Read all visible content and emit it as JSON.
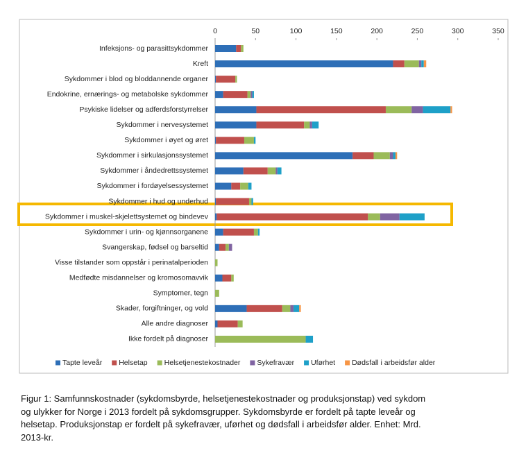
{
  "chart_data": {
    "type": "stacked_bar_horizontal",
    "categories": [
      "Infeksjons- og parasittsykdommer",
      "Kreft",
      "Sykdommer i blod og bloddannende organer",
      "Endokrine, ernærings- og metabolske sykdommer",
      "Psykiske lidelser og adferdsforstyrrelser",
      "Sykdommer i nervesystemet",
      "Sykdommer i øyet og øret",
      "Sykdommer i sirkulasjonssystemet",
      "Sykdommer i åndedrettssystemet",
      "Sykdommer i fordøyelsessystemet",
      "Sykdommer i hud og underhud",
      "Sykdommer i muskel-skjelettsystemet og bindevev",
      "Sykdommer i urin- og kjønnsorganene",
      "Svangerskap, fødsel og barseltid",
      "Visse tilstander som oppstår i perinatalperioden",
      "Medfødte misdannelser og kromosomavvik",
      "Symptomer, tegn",
      "Skader, forgiftninger, og vold",
      "Alle andre diagnoser",
      "Ikke fordelt på diagnoser"
    ],
    "series": [
      {
        "name": "Tapte leveår",
        "color": "#2e6fb7",
        "values": [
          26,
          220,
          1,
          10,
          51,
          51,
          1,
          170,
          35,
          20,
          1,
          2,
          10,
          5,
          0,
          9,
          0,
          39,
          3,
          0
        ]
      },
      {
        "name": "Helsetap",
        "color": "#c0504d",
        "values": [
          6,
          14,
          24,
          30,
          160,
          59,
          35,
          26,
          30,
          11,
          41,
          187,
          38,
          8,
          0,
          11,
          0,
          44,
          25,
          0
        ]
      },
      {
        "name": "Helsetjenestekostnader",
        "color": "#9bbb59",
        "values": [
          3,
          18,
          2,
          4,
          32,
          7,
          12,
          20,
          10,
          10,
          3,
          15,
          5,
          4,
          3,
          3,
          5,
          10,
          6,
          112
        ]
      },
      {
        "name": "Sykefravær",
        "color": "#8064a2",
        "values": [
          0,
          3,
          0,
          2,
          14,
          3,
          0,
          4,
          2,
          0,
          0,
          24,
          0,
          4,
          0,
          0,
          0,
          4,
          0,
          0
        ]
      },
      {
        "name": "Uførhet",
        "color": "#1ea0c8",
        "values": [
          0,
          3,
          0,
          2,
          34,
          8,
          2,
          3,
          5,
          4,
          2,
          31,
          2,
          0,
          0,
          0,
          0,
          7,
          0,
          9
        ]
      },
      {
        "name": "Dødsfall i arbeidsfør alder",
        "color": "#f79646",
        "values": [
          0,
          3,
          0,
          0,
          2,
          0,
          0,
          2,
          0,
          0,
          0,
          0,
          0,
          0,
          0,
          0,
          0,
          2,
          0,
          0
        ]
      }
    ],
    "xlim": [
      0,
      350
    ],
    "xticks": [
      0,
      50,
      100,
      150,
      200,
      250,
      300,
      350
    ]
  },
  "caption": [
    "Figur 1: Samfunnskostnader (sykdomsbyrde, helsetjenestekostnader og produksjonstap) ved sykdom",
    "og ulykker for Norge i 2013 fordelt på sykdomsgrupper. Sykdomsbyrde er fordelt på tapte leveår og",
    "helsetap. Produksjonstap er fordelt på sykefravær, uførhet og dødsfall i arbeidsfør alder. Enhet: Mrd.",
    "2013-kr."
  ]
}
